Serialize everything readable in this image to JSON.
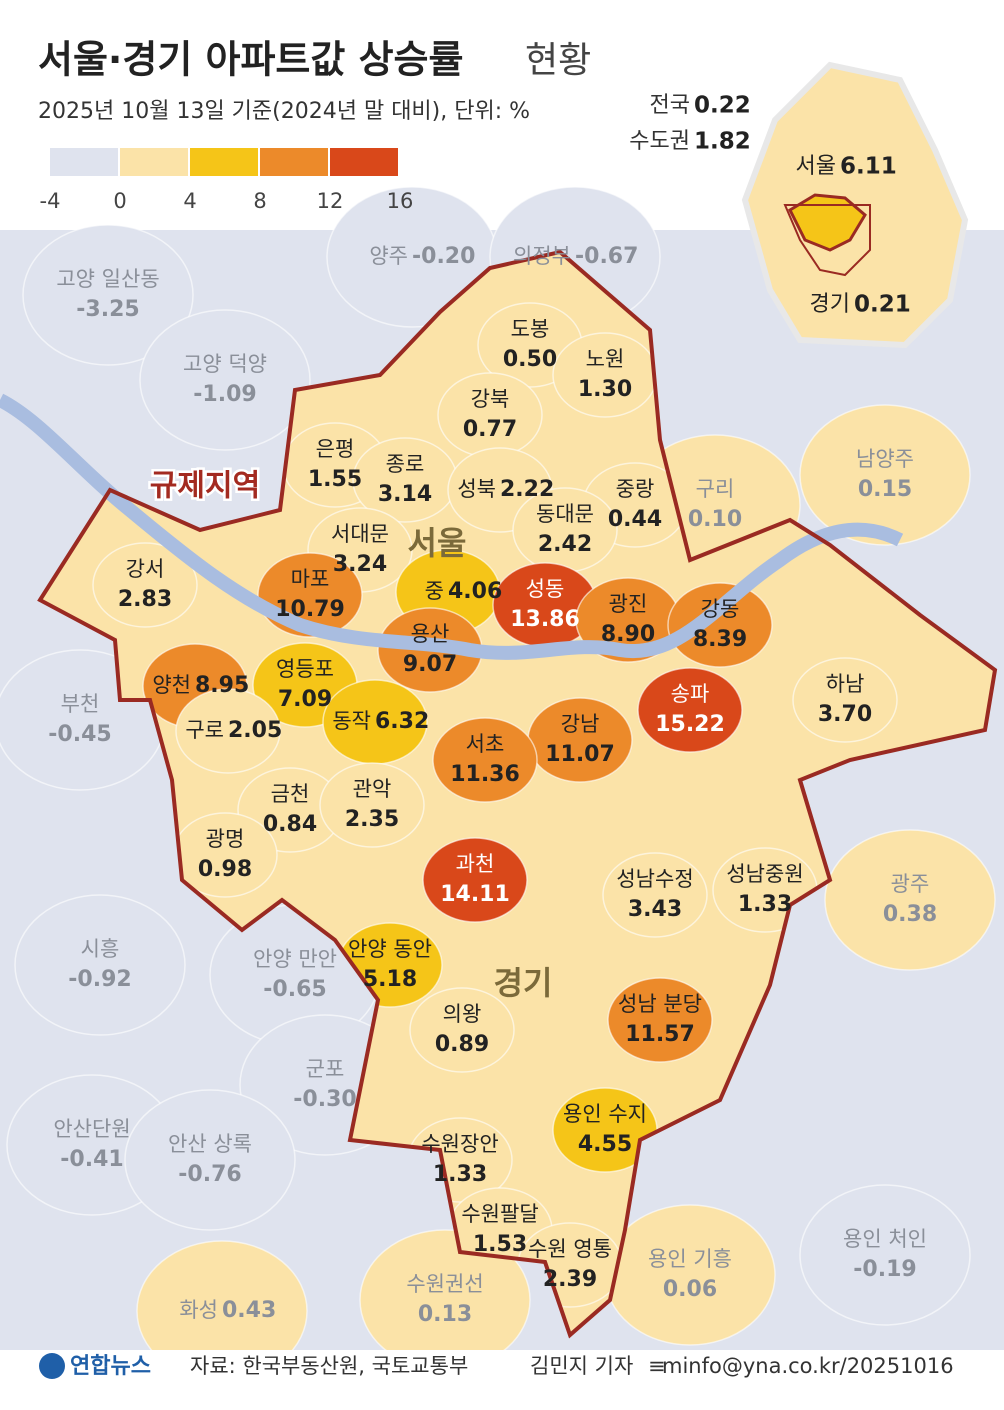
{
  "header": {
    "title": "서울·경기 아파트값 상승률",
    "title_suffix": "현황",
    "subtitle": "2025년 10월 13일 기준(2024년 말 대비), 단위: %"
  },
  "legend": {
    "colors": [
      "#dfe3ee",
      "#fbe3a8",
      "#f5c518",
      "#ec8a2a",
      "#d9481a"
    ],
    "ticks": [
      -4,
      0,
      4,
      8,
      12,
      16
    ]
  },
  "summary": {
    "national": {
      "name": "전국",
      "value": "0.22"
    },
    "capital_area": {
      "name": "수도권",
      "value": "1.82"
    },
    "seoul": {
      "name": "서울",
      "value": "6.11"
    },
    "gyeonggi": {
      "name": "경기",
      "value": "0.21"
    }
  },
  "map_labels": {
    "seoul": "서울",
    "gyeonggi": "경기"
  },
  "regulated_zone": {
    "label": "규제지역",
    "regions": [
      {
        "name": "도봉",
        "value": "0.50"
      },
      {
        "name": "노원",
        "value": "1.30"
      },
      {
        "name": "강북",
        "value": "0.77"
      },
      {
        "name": "은평",
        "value": "1.55"
      },
      {
        "name": "종로",
        "value": "3.14"
      },
      {
        "name": "성북",
        "value": "2.22"
      },
      {
        "name": "중랑",
        "value": "0.44"
      },
      {
        "name": "동대문",
        "value": "2.42"
      },
      {
        "name": "서대문",
        "value": "3.24"
      },
      {
        "name": "강서",
        "value": "2.83"
      },
      {
        "name": "마포",
        "value": "10.79"
      },
      {
        "name": "중",
        "value": "4.06"
      },
      {
        "name": "성동",
        "value": "13.86"
      },
      {
        "name": "광진",
        "value": "8.90"
      },
      {
        "name": "강동",
        "value": "8.39"
      },
      {
        "name": "용산",
        "value": "9.07"
      },
      {
        "name": "양천",
        "value": "8.95"
      },
      {
        "name": "영등포",
        "value": "7.09"
      },
      {
        "name": "송파",
        "value": "15.22"
      },
      {
        "name": "하남",
        "value": "3.70"
      },
      {
        "name": "강남",
        "value": "11.07"
      },
      {
        "name": "서초",
        "value": "11.36"
      },
      {
        "name": "동작",
        "value": "6.32"
      },
      {
        "name": "구로",
        "value": "2.05"
      },
      {
        "name": "금천",
        "value": "0.84"
      },
      {
        "name": "관악",
        "value": "2.35"
      },
      {
        "name": "광명",
        "value": "0.98"
      },
      {
        "name": "과천",
        "value": "14.11"
      },
      {
        "name": "성남수정",
        "value": "3.43"
      },
      {
        "name": "성남중원",
        "value": "1.33"
      },
      {
        "name": "안양 동안",
        "value": "5.18"
      },
      {
        "name": "의왕",
        "value": "0.89"
      },
      {
        "name": "성남 분당",
        "value": "11.57"
      },
      {
        "name": "용인 수지",
        "value": "4.55"
      },
      {
        "name": "수원장안",
        "value": "1.33"
      },
      {
        "name": "수원팔달",
        "value": "1.53"
      },
      {
        "name": "수원 영통",
        "value": "2.39"
      }
    ]
  },
  "other_regions": [
    {
      "name": "양주",
      "value": "-0.20"
    },
    {
      "name": "의정부",
      "value": "-0.67"
    },
    {
      "name": "고양 일산동",
      "value": "-3.25"
    },
    {
      "name": "고양 덕양",
      "value": "-1.09"
    },
    {
      "name": "남양주",
      "value": "0.15"
    },
    {
      "name": "구리",
      "value": "0.10"
    },
    {
      "name": "부천",
      "value": "-0.45"
    },
    {
      "name": "광주",
      "value": "0.38"
    },
    {
      "name": "시흥",
      "value": "-0.92"
    },
    {
      "name": "안양 만안",
      "value": "-0.65"
    },
    {
      "name": "군포",
      "value": "-0.30"
    },
    {
      "name": "안산단원",
      "value": "-0.41"
    },
    {
      "name": "안산 상록",
      "value": "-0.76"
    },
    {
      "name": "용인 기흥",
      "value": "0.06"
    },
    {
      "name": "용인 처인",
      "value": "-0.19"
    },
    {
      "name": "수원권선",
      "value": "0.13"
    },
    {
      "name": "화성",
      "value": "0.43"
    }
  ],
  "footer": {
    "logo": "연합뉴스",
    "source": "자료: 한국부동산원, 국토교통부",
    "reporter": "김민지 기자",
    "contact": "minfo@yna.co.kr/20251016"
  }
}
